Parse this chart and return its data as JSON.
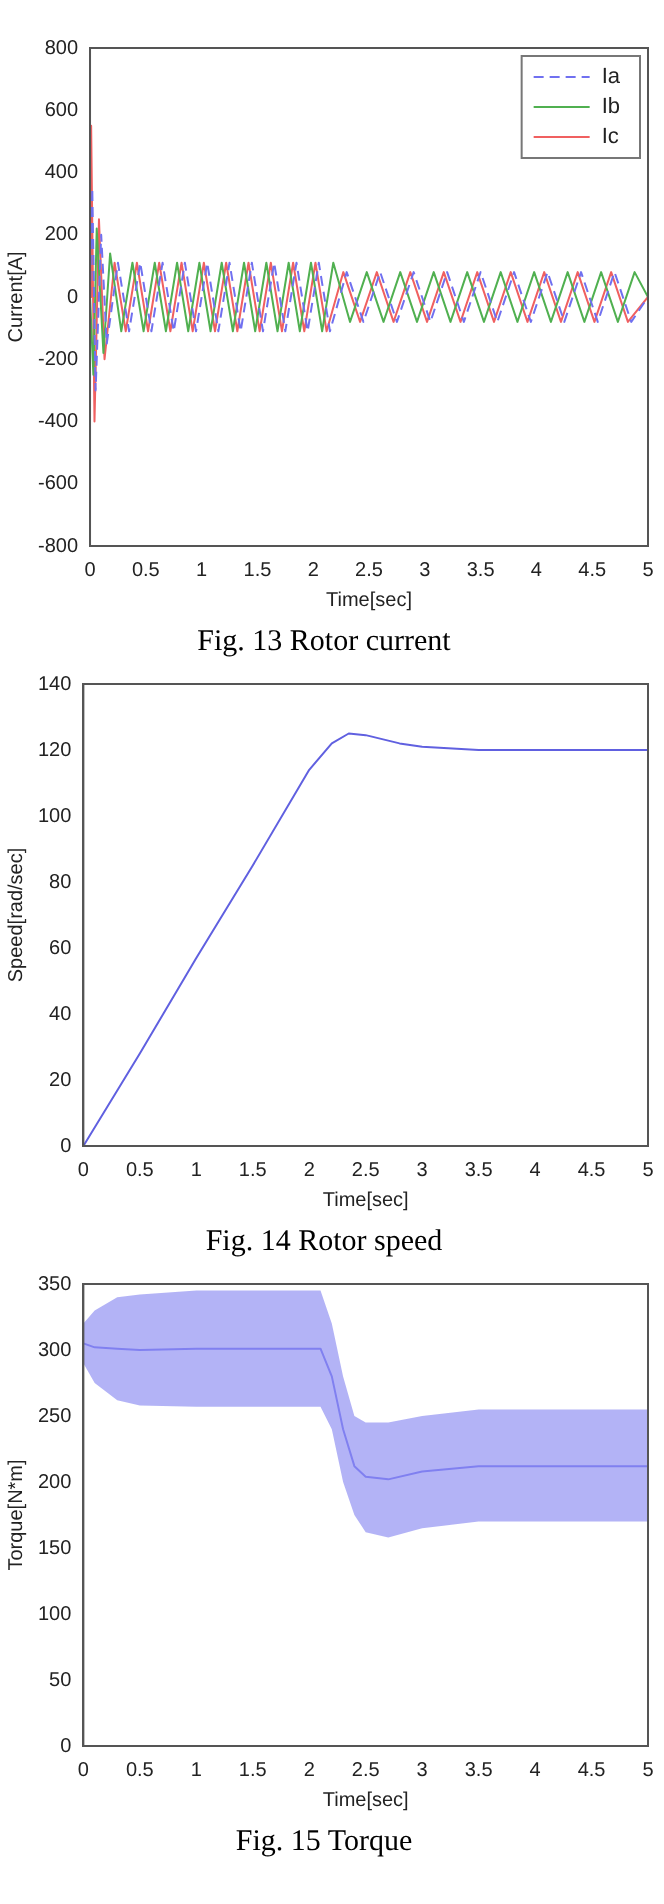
{
  "chart_data": [
    {
      "type": "line",
      "title": "Fig. 13 Rotor current",
      "xlabel": "Time[sec]",
      "ylabel": "Current[A]",
      "xlim": [
        0,
        5
      ],
      "xticks": [
        0,
        0.5,
        1,
        1.5,
        2,
        2.5,
        3,
        3.5,
        4,
        4.5,
        5
      ],
      "ylim": [
        -800,
        800
      ],
      "yticks": [
        -800,
        -600,
        -400,
        -200,
        0,
        200,
        400,
        600,
        800
      ],
      "grid": false,
      "legend": "top right",
      "marker": "none",
      "series": [
        {
          "name": "Ia",
          "color": "#7070f0",
          "line_style": "dashed",
          "x": [
            0,
            0.02,
            0.05,
            0.1,
            0.15,
            0.25,
            0.35,
            0.45,
            0.55,
            0.65,
            0.75,
            0.85,
            0.95,
            1.05,
            1.15,
            1.25,
            1.35,
            1.45,
            1.55,
            1.65,
            1.75,
            1.85,
            1.95,
            2.05,
            2.15,
            2.3,
            2.45,
            2.6,
            2.75,
            2.9,
            3.05,
            3.2,
            3.35,
            3.5,
            3.65,
            3.8,
            3.95,
            4.1,
            4.25,
            4.4,
            4.55,
            4.7,
            4.85,
            5
          ],
          "values": [
            0,
            350,
            -300,
            200,
            -150,
            110,
            -110,
            110,
            -110,
            110,
            -110,
            110,
            -110,
            110,
            -110,
            110,
            -110,
            110,
            -110,
            110,
            -110,
            110,
            -110,
            110,
            -110,
            80,
            -80,
            80,
            -80,
            80,
            -80,
            80,
            -80,
            80,
            -80,
            80,
            -80,
            80,
            -80,
            80,
            -80,
            80,
            -80,
            0
          ]
        },
        {
          "name": "Ib",
          "color": "#50b050",
          "line_style": "solid",
          "x": [
            0,
            0.03,
            0.06,
            0.12,
            0.18,
            0.28,
            0.38,
            0.48,
            0.58,
            0.68,
            0.78,
            0.88,
            0.98,
            1.08,
            1.18,
            1.28,
            1.38,
            1.48,
            1.58,
            1.68,
            1.78,
            1.88,
            1.98,
            2.08,
            2.18,
            2.33,
            2.48,
            2.63,
            2.78,
            2.93,
            3.08,
            3.23,
            3.38,
            3.53,
            3.68,
            3.83,
            3.98,
            4.13,
            4.28,
            4.43,
            4.58,
            4.73,
            4.88,
            5
          ],
          "values": [
            0,
            -250,
            220,
            -180,
            140,
            -110,
            110,
            -110,
            110,
            -110,
            110,
            -110,
            110,
            -110,
            110,
            -110,
            110,
            -110,
            110,
            -110,
            110,
            -110,
            110,
            -110,
            110,
            -80,
            80,
            -80,
            80,
            -80,
            80,
            -80,
            80,
            -80,
            80,
            -80,
            80,
            -80,
            80,
            -80,
            80,
            -80,
            80,
            0
          ]
        },
        {
          "name": "Ic",
          "color": "#f06060",
          "line_style": "solid",
          "x": [
            0,
            0.01,
            0.04,
            0.08,
            0.13,
            0.22,
            0.32,
            0.42,
            0.52,
            0.62,
            0.72,
            0.82,
            0.92,
            1.02,
            1.12,
            1.22,
            1.32,
            1.42,
            1.52,
            1.62,
            1.72,
            1.82,
            1.92,
            2.02,
            2.12,
            2.27,
            2.42,
            2.57,
            2.72,
            2.87,
            3.02,
            3.17,
            3.32,
            3.47,
            3.62,
            3.77,
            3.92,
            4.07,
            4.22,
            4.37,
            4.52,
            4.67,
            4.82,
            5
          ],
          "values": [
            0,
            550,
            -400,
            250,
            -200,
            110,
            -110,
            110,
            -110,
            110,
            -110,
            110,
            -110,
            110,
            -110,
            110,
            -110,
            110,
            -110,
            110,
            -110,
            110,
            -110,
            110,
            -110,
            80,
            -80,
            80,
            -80,
            80,
            -80,
            80,
            -80,
            80,
            -80,
            80,
            -80,
            80,
            -80,
            80,
            -80,
            80,
            -80,
            0
          ]
        }
      ]
    },
    {
      "type": "line",
      "title": "Fig. 14 Rotor speed",
      "xlabel": "Time[sec]",
      "ylabel": "Speed[rad/sec]",
      "xlim": [
        0,
        5
      ],
      "xticks": [
        0,
        0.5,
        1,
        1.5,
        2,
        2.5,
        3,
        3.5,
        4,
        4.5,
        5
      ],
      "ylim": [
        0,
        140
      ],
      "yticks": [
        0,
        20,
        40,
        60,
        80,
        100,
        120,
        140
      ],
      "grid": false,
      "marker": "none",
      "series": [
        {
          "color": "#6060e0",
          "x": [
            0,
            0.5,
            1,
            1.5,
            2,
            2.2,
            2.35,
            2.5,
            2.8,
            3,
            3.5,
            4,
            5
          ],
          "values": [
            0,
            28,
            57,
            85,
            114,
            122,
            125,
            124.5,
            122,
            121,
            120,
            120,
            120
          ]
        }
      ]
    },
    {
      "type": "line",
      "title": "Fig. 15 Torque",
      "xlabel": "Time[sec]",
      "ylabel": "Torque[N*m]",
      "xlim": [
        0,
        5
      ],
      "xticks": [
        0,
        0.5,
        1,
        1.5,
        2,
        2.5,
        3,
        3.5,
        4,
        4.5,
        5
      ],
      "ylim": [
        0,
        350
      ],
      "yticks": [
        0,
        50,
        100,
        150,
        200,
        250,
        300,
        350
      ],
      "grid": false,
      "marker": "none",
      "series": [
        {
          "color": "#8080f0",
          "x": [
            0,
            0.1,
            0.3,
            0.5,
            1,
            1.5,
            2,
            2.1,
            2.2,
            2.3,
            2.4,
            2.5,
            2.7,
            3,
            3.5,
            4,
            4.5,
            5
          ],
          "values": [
            305,
            302,
            301,
            300,
            301,
            301,
            301,
            301,
            280,
            240,
            212,
            204,
            202,
            208,
            212,
            212,
            212,
            212
          ],
          "lower": [
            290,
            275,
            262,
            258,
            257,
            257,
            257,
            257,
            240,
            200,
            175,
            162,
            158,
            165,
            170,
            170,
            170,
            170
          ],
          "upper": [
            320,
            330,
            340,
            342,
            345,
            345,
            345,
            345,
            320,
            280,
            250,
            245,
            245,
            250,
            255,
            255,
            255,
            255
          ]
        }
      ]
    }
  ]
}
